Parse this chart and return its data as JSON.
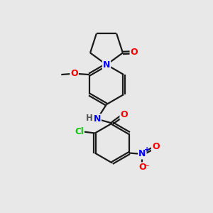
{
  "background_color": "#e8e8e8",
  "bond_color": "#1a1a1a",
  "atom_colors": {
    "N": "#0000ff",
    "O": "#ff0000",
    "Cl": "#00cc00",
    "H": "#555555",
    "C": "#1a1a1a"
  },
  "figsize": [
    3.0,
    3.0
  ],
  "dpi": 100
}
